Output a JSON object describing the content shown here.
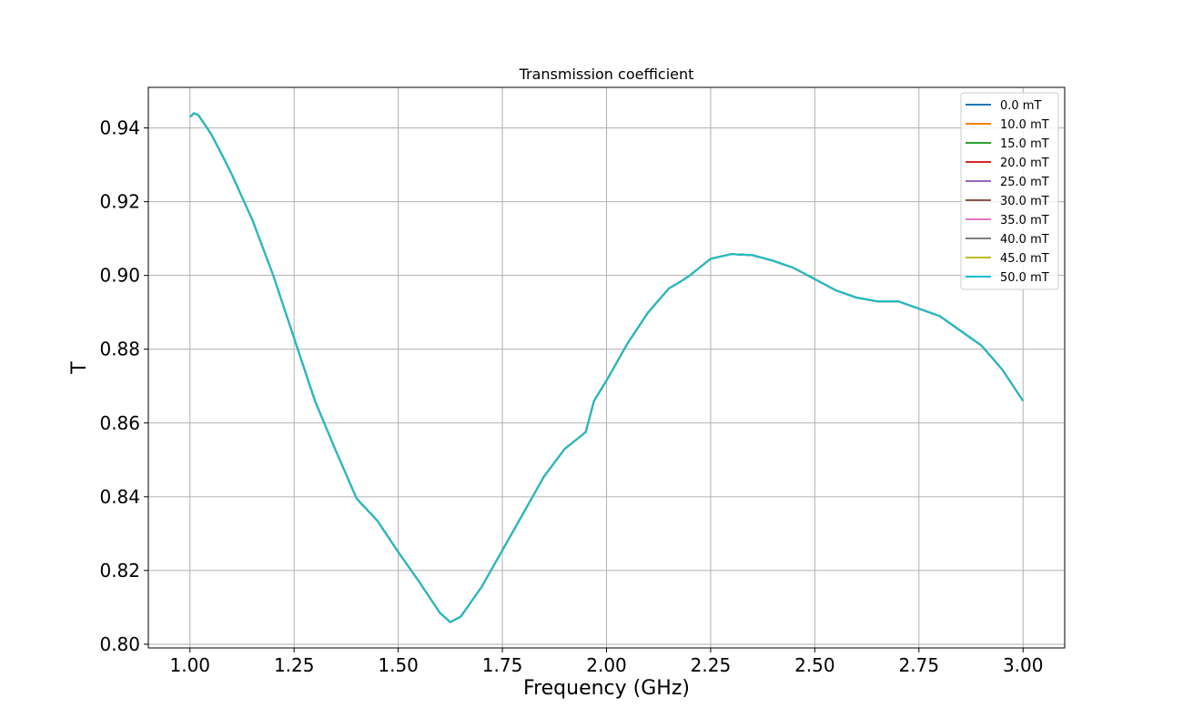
{
  "chart_data": {
    "type": "line",
    "title": "Transmission coefficient",
    "xlabel": "Frequency (GHz)",
    "ylabel": "T",
    "xlim": [
      0.9,
      3.1
    ],
    "ylim": [
      0.799,
      0.951
    ],
    "xticks": [
      1.0,
      1.25,
      1.5,
      1.75,
      2.0,
      2.25,
      2.5,
      2.75,
      3.0
    ],
    "xtick_labels": [
      "1.00",
      "1.25",
      "1.50",
      "1.75",
      "2.00",
      "2.25",
      "2.50",
      "2.75",
      "3.00"
    ],
    "yticks": [
      0.8,
      0.82,
      0.84,
      0.86,
      0.88,
      0.9,
      0.92,
      0.94
    ],
    "ytick_labels": [
      "0.80",
      "0.82",
      "0.84",
      "0.86",
      "0.88",
      "0.90",
      "0.92",
      "0.94"
    ],
    "grid": true,
    "legend_position": "top-right",
    "x": [
      1.0,
      1.01,
      1.02,
      1.05,
      1.08,
      1.1,
      1.15,
      1.2,
      1.25,
      1.3,
      1.35,
      1.4,
      1.45,
      1.5,
      1.55,
      1.6,
      1.625,
      1.65,
      1.7,
      1.75,
      1.8,
      1.85,
      1.9,
      1.95,
      1.97,
      2.0,
      2.05,
      2.1,
      2.15,
      2.18,
      2.2,
      2.25,
      2.3,
      2.35,
      2.4,
      2.45,
      2.5,
      2.55,
      2.6,
      2.65,
      2.7,
      2.75,
      2.8,
      2.85,
      2.9,
      2.95,
      3.0
    ],
    "series": [
      {
        "name": "0.0 mT",
        "color": "#1f77b4",
        "values": [
          0.943,
          0.944,
          0.9435,
          0.9385,
          0.932,
          0.9275,
          0.915,
          0.9,
          0.883,
          0.866,
          0.8525,
          0.8395,
          0.8335,
          0.825,
          0.817,
          0.8085,
          0.806,
          0.8075,
          0.8155,
          0.8255,
          0.8355,
          0.8455,
          0.853,
          0.8575,
          0.866,
          0.8715,
          0.8815,
          0.89,
          0.8965,
          0.8985,
          0.9,
          0.9045,
          0.9058,
          0.9055,
          0.904,
          0.902,
          0.899,
          0.896,
          0.894,
          0.893,
          0.893,
          0.891,
          0.889,
          0.885,
          0.881,
          0.8745,
          0.866
        ]
      },
      {
        "name": "10.0 mT",
        "color": "#ff7f0e",
        "values": [
          0.943,
          0.944,
          0.9435,
          0.9385,
          0.932,
          0.9275,
          0.915,
          0.9,
          0.883,
          0.866,
          0.8525,
          0.8395,
          0.8335,
          0.825,
          0.817,
          0.8085,
          0.806,
          0.8075,
          0.8155,
          0.8255,
          0.8355,
          0.8455,
          0.853,
          0.8575,
          0.866,
          0.8715,
          0.8815,
          0.89,
          0.8965,
          0.8985,
          0.9,
          0.9045,
          0.9058,
          0.9055,
          0.904,
          0.902,
          0.899,
          0.896,
          0.894,
          0.893,
          0.893,
          0.891,
          0.889,
          0.885,
          0.881,
          0.8745,
          0.866
        ]
      },
      {
        "name": "15.0 mT",
        "color": "#2ca02c",
        "values": [
          0.943,
          0.944,
          0.9435,
          0.9385,
          0.932,
          0.9275,
          0.915,
          0.9,
          0.883,
          0.866,
          0.8525,
          0.8395,
          0.8335,
          0.825,
          0.817,
          0.8085,
          0.806,
          0.8075,
          0.8155,
          0.8255,
          0.8355,
          0.8455,
          0.853,
          0.8575,
          0.866,
          0.8715,
          0.8815,
          0.89,
          0.8965,
          0.8985,
          0.9,
          0.9045,
          0.9058,
          0.9055,
          0.904,
          0.902,
          0.899,
          0.896,
          0.894,
          0.893,
          0.893,
          0.891,
          0.889,
          0.885,
          0.881,
          0.8745,
          0.866
        ]
      },
      {
        "name": "20.0 mT",
        "color": "#d62728",
        "values": [
          0.943,
          0.944,
          0.9435,
          0.9385,
          0.932,
          0.9275,
          0.915,
          0.9,
          0.883,
          0.866,
          0.8525,
          0.8395,
          0.8335,
          0.825,
          0.817,
          0.8085,
          0.806,
          0.8075,
          0.8155,
          0.8255,
          0.8355,
          0.8455,
          0.853,
          0.8575,
          0.866,
          0.8715,
          0.8815,
          0.89,
          0.8965,
          0.8985,
          0.9,
          0.9045,
          0.9058,
          0.9055,
          0.904,
          0.902,
          0.899,
          0.896,
          0.894,
          0.893,
          0.893,
          0.891,
          0.889,
          0.885,
          0.881,
          0.8745,
          0.866
        ]
      },
      {
        "name": "25.0 mT",
        "color": "#9467bd",
        "values": [
          0.943,
          0.944,
          0.9435,
          0.9385,
          0.932,
          0.9275,
          0.915,
          0.9,
          0.883,
          0.866,
          0.8525,
          0.8395,
          0.8335,
          0.825,
          0.817,
          0.8085,
          0.806,
          0.8075,
          0.8155,
          0.8255,
          0.8355,
          0.8455,
          0.853,
          0.8575,
          0.866,
          0.8715,
          0.8815,
          0.89,
          0.8965,
          0.8985,
          0.9,
          0.9045,
          0.9058,
          0.9055,
          0.904,
          0.902,
          0.899,
          0.896,
          0.894,
          0.893,
          0.893,
          0.891,
          0.889,
          0.885,
          0.881,
          0.8745,
          0.866
        ]
      },
      {
        "name": "30.0 mT",
        "color": "#8c564b",
        "values": [
          0.943,
          0.944,
          0.9435,
          0.9385,
          0.932,
          0.9275,
          0.915,
          0.9,
          0.883,
          0.866,
          0.8525,
          0.8395,
          0.8335,
          0.825,
          0.817,
          0.8085,
          0.806,
          0.8075,
          0.8155,
          0.8255,
          0.8355,
          0.8455,
          0.853,
          0.8575,
          0.866,
          0.8715,
          0.8815,
          0.89,
          0.8965,
          0.8985,
          0.9,
          0.9045,
          0.9058,
          0.9055,
          0.904,
          0.902,
          0.899,
          0.896,
          0.894,
          0.893,
          0.893,
          0.891,
          0.889,
          0.885,
          0.881,
          0.8745,
          0.866
        ]
      },
      {
        "name": "35.0 mT",
        "color": "#e377c2",
        "values": [
          0.943,
          0.944,
          0.9435,
          0.9385,
          0.932,
          0.9275,
          0.915,
          0.9,
          0.883,
          0.866,
          0.8525,
          0.8395,
          0.8335,
          0.825,
          0.817,
          0.8085,
          0.806,
          0.8075,
          0.8155,
          0.8255,
          0.8355,
          0.8455,
          0.853,
          0.8575,
          0.866,
          0.8715,
          0.8815,
          0.89,
          0.8965,
          0.8985,
          0.9,
          0.9045,
          0.9058,
          0.9055,
          0.904,
          0.902,
          0.899,
          0.896,
          0.894,
          0.893,
          0.893,
          0.891,
          0.889,
          0.885,
          0.881,
          0.8745,
          0.866
        ]
      },
      {
        "name": "40.0 mT",
        "color": "#7f7f7f",
        "values": [
          0.943,
          0.944,
          0.9435,
          0.9385,
          0.932,
          0.9275,
          0.915,
          0.9,
          0.883,
          0.866,
          0.8525,
          0.8395,
          0.8335,
          0.825,
          0.817,
          0.8085,
          0.806,
          0.8075,
          0.8155,
          0.8255,
          0.8355,
          0.8455,
          0.853,
          0.8575,
          0.866,
          0.8715,
          0.8815,
          0.89,
          0.8965,
          0.8985,
          0.9,
          0.9045,
          0.9058,
          0.9055,
          0.904,
          0.902,
          0.899,
          0.896,
          0.894,
          0.893,
          0.893,
          0.891,
          0.889,
          0.885,
          0.881,
          0.8745,
          0.866
        ]
      },
      {
        "name": "45.0 mT",
        "color": "#bcbd22",
        "values": [
          0.943,
          0.944,
          0.9435,
          0.9385,
          0.932,
          0.9275,
          0.915,
          0.9,
          0.883,
          0.866,
          0.8525,
          0.8395,
          0.8335,
          0.825,
          0.817,
          0.8085,
          0.806,
          0.8075,
          0.8155,
          0.8255,
          0.8355,
          0.8455,
          0.853,
          0.8575,
          0.866,
          0.8715,
          0.8815,
          0.89,
          0.8965,
          0.8985,
          0.9,
          0.9045,
          0.9058,
          0.9055,
          0.904,
          0.902,
          0.899,
          0.896,
          0.894,
          0.893,
          0.893,
          0.891,
          0.889,
          0.885,
          0.881,
          0.8745,
          0.866
        ]
      },
      {
        "name": "50.0 mT",
        "color": "#17becf",
        "values": [
          0.943,
          0.944,
          0.9435,
          0.9385,
          0.932,
          0.9275,
          0.915,
          0.9,
          0.883,
          0.866,
          0.8525,
          0.8395,
          0.8335,
          0.825,
          0.817,
          0.8085,
          0.806,
          0.8075,
          0.8155,
          0.8255,
          0.8355,
          0.8455,
          0.853,
          0.8575,
          0.866,
          0.8715,
          0.8815,
          0.89,
          0.8965,
          0.8985,
          0.9,
          0.9045,
          0.9058,
          0.9055,
          0.904,
          0.902,
          0.899,
          0.896,
          0.894,
          0.893,
          0.893,
          0.891,
          0.889,
          0.885,
          0.881,
          0.8745,
          0.866
        ]
      }
    ]
  }
}
